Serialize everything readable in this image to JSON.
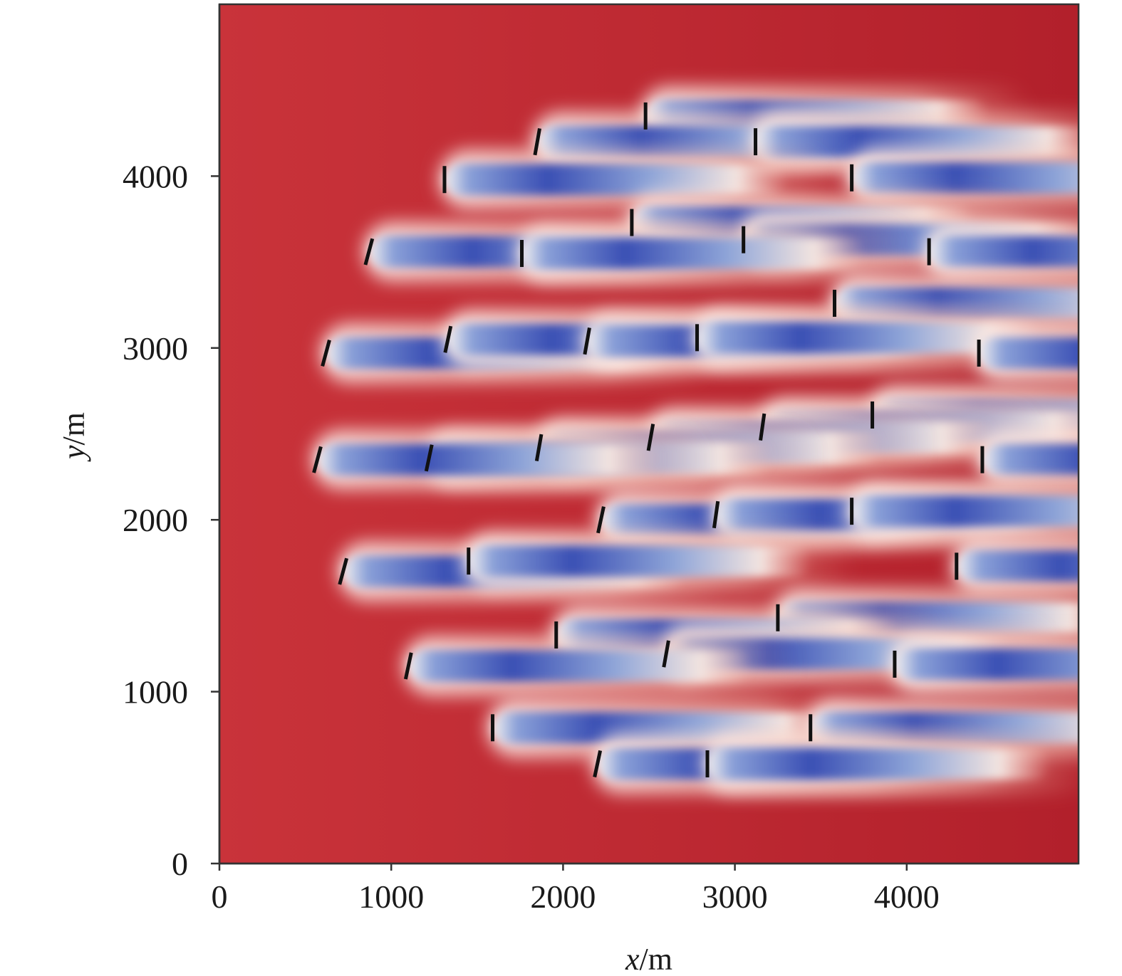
{
  "chart_data": {
    "type": "heatmap",
    "title": "",
    "xlabel_var": "x",
    "xlabel_unit": "/m",
    "ylabel_var": "y",
    "ylabel_unit": "/m",
    "xlim": [
      0,
      5000
    ],
    "ylim": [
      0,
      5000
    ],
    "x_ticks": [
      0,
      1000,
      2000,
      3000,
      4000
    ],
    "x_tick_labels": [
      "0",
      "1000",
      "2000",
      "3000",
      "4000"
    ],
    "y_ticks": [
      0,
      1000,
      2000,
      3000,
      4000
    ],
    "y_tick_labels": [
      "0",
      "1000",
      "2000",
      "3000",
      "4000"
    ],
    "grid": false,
    "colormap": {
      "high": "#b2202b",
      "mid": "#f7efec",
      "low": "#3a4fb4"
    },
    "wake_length_m": 2000,
    "turbines": [
      {
        "x": 2480,
        "y": 4350,
        "yaw": 0
      },
      {
        "x": 1850,
        "y": 4200,
        "yaw": -10
      },
      {
        "x": 3120,
        "y": 4200,
        "yaw": 0
      },
      {
        "x": 1310,
        "y": 3980,
        "yaw": 0
      },
      {
        "x": 3680,
        "y": 3990,
        "yaw": 0
      },
      {
        "x": 2400,
        "y": 3730,
        "yaw": 0
      },
      {
        "x": 3050,
        "y": 3630,
        "yaw": 0
      },
      {
        "x": 870,
        "y": 3560,
        "yaw": -15
      },
      {
        "x": 1760,
        "y": 3550,
        "yaw": 0
      },
      {
        "x": 4130,
        "y": 3560,
        "yaw": 0
      },
      {
        "x": 3580,
        "y": 3260,
        "yaw": 0
      },
      {
        "x": 620,
        "y": 2970,
        "yaw": -15
      },
      {
        "x": 1330,
        "y": 3050,
        "yaw": -12
      },
      {
        "x": 2140,
        "y": 3040,
        "yaw": -10
      },
      {
        "x": 2780,
        "y": 3060,
        "yaw": 0
      },
      {
        "x": 4420,
        "y": 2970,
        "yaw": 0
      },
      {
        "x": 3800,
        "y": 2610,
        "yaw": 0
      },
      {
        "x": 3160,
        "y": 2540,
        "yaw": -8
      },
      {
        "x": 2510,
        "y": 2480,
        "yaw": -10
      },
      {
        "x": 1860,
        "y": 2420,
        "yaw": -10
      },
      {
        "x": 1220,
        "y": 2360,
        "yaw": -12
      },
      {
        "x": 570,
        "y": 2350,
        "yaw": -15
      },
      {
        "x": 4440,
        "y": 2350,
        "yaw": 0
      },
      {
        "x": 2220,
        "y": 2000,
        "yaw": -12
      },
      {
        "x": 2890,
        "y": 2030,
        "yaw": -8
      },
      {
        "x": 3680,
        "y": 2050,
        "yaw": 0
      },
      {
        "x": 720,
        "y": 1700,
        "yaw": -15
      },
      {
        "x": 1450,
        "y": 1760,
        "yaw": 0
      },
      {
        "x": 4290,
        "y": 1730,
        "yaw": 0
      },
      {
        "x": 3250,
        "y": 1430,
        "yaw": 0
      },
      {
        "x": 1960,
        "y": 1330,
        "yaw": 0
      },
      {
        "x": 2600,
        "y": 1220,
        "yaw": -10
      },
      {
        "x": 1100,
        "y": 1150,
        "yaw": -12
      },
      {
        "x": 3930,
        "y": 1160,
        "yaw": 0
      },
      {
        "x": 1590,
        "y": 790,
        "yaw": 0
      },
      {
        "x": 3440,
        "y": 790,
        "yaw": 0
      },
      {
        "x": 2200,
        "y": 580,
        "yaw": -12
      },
      {
        "x": 2840,
        "y": 580,
        "yaw": 0
      }
    ]
  }
}
